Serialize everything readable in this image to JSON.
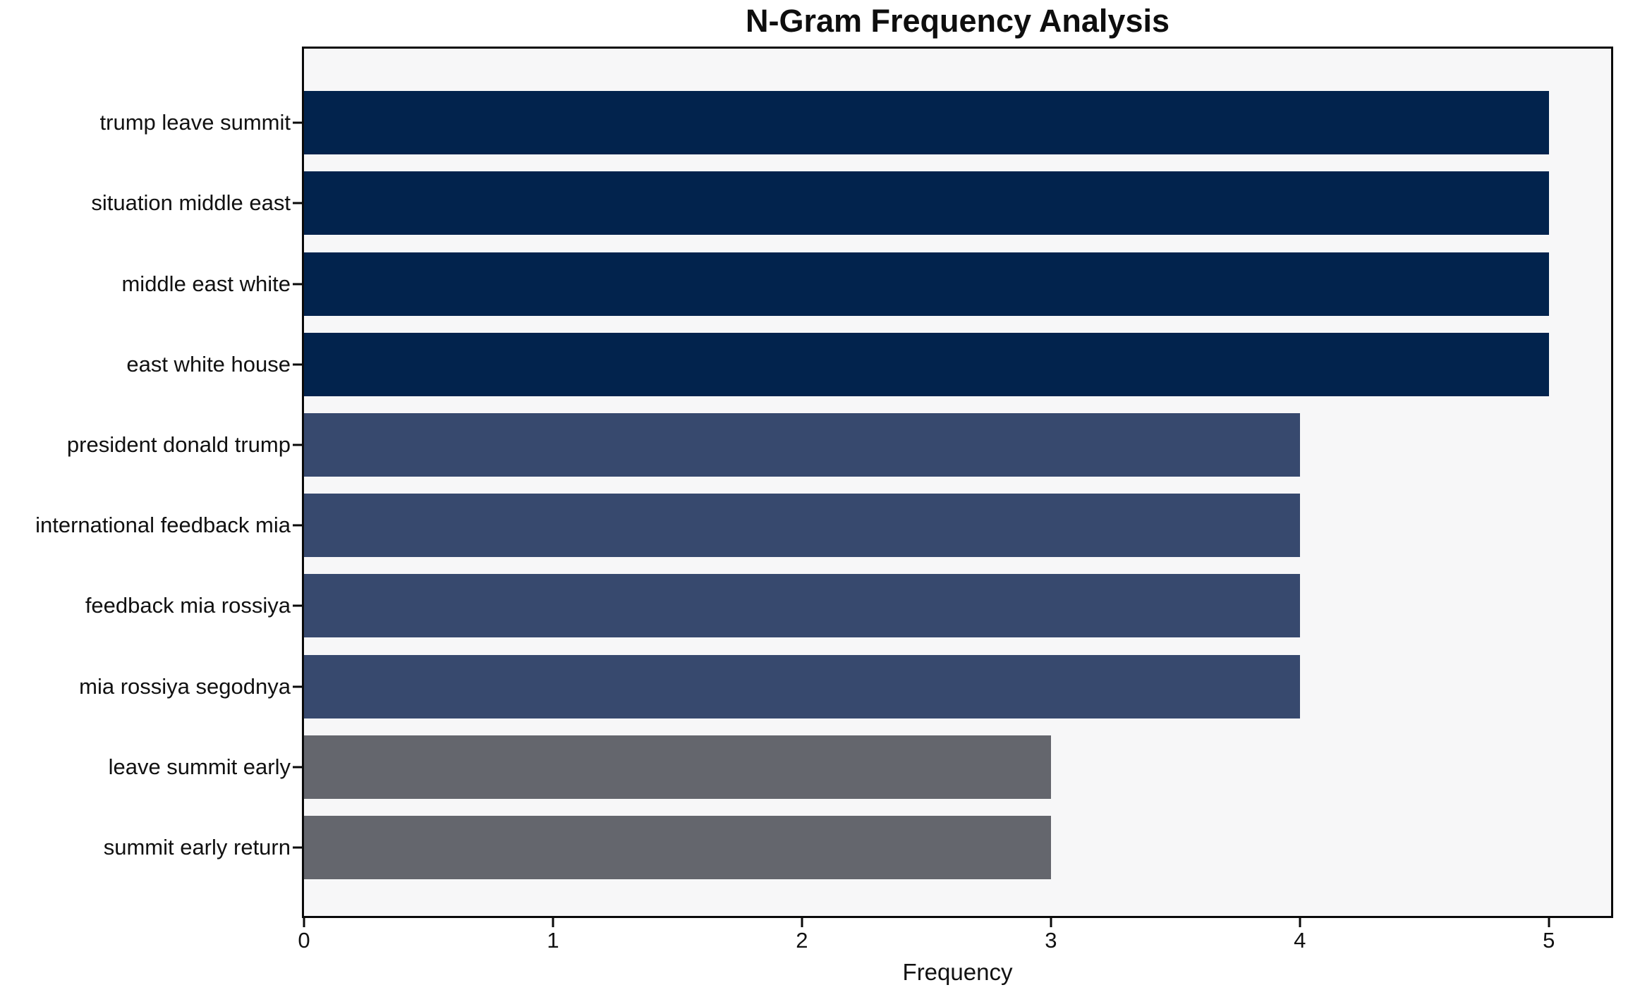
{
  "chart_data": {
    "type": "bar",
    "orientation": "horizontal",
    "title": "N-Gram Frequency Analysis",
    "xlabel": "Frequency",
    "ylabel": "",
    "categories": [
      "trump leave summit",
      "situation middle east",
      "middle east white",
      "east white house",
      "president donald trump",
      "international feedback mia",
      "feedback mia rossiya",
      "mia rossiya segodnya",
      "leave summit early",
      "summit early return"
    ],
    "values": [
      5,
      5,
      5,
      5,
      4,
      4,
      4,
      4,
      3,
      3
    ],
    "bar_colors": [
      "#02234d",
      "#02234d",
      "#02234d",
      "#02234d",
      "#37496e",
      "#37496e",
      "#37496e",
      "#37496e",
      "#64666d",
      "#64666d"
    ],
    "xticks": [
      0,
      1,
      2,
      3,
      4,
      5
    ],
    "xlim": [
      0,
      5.25
    ],
    "grid": false,
    "legend_position": "none",
    "plot_background": "#f7f7f8",
    "figure_background": "#ffffff"
  }
}
